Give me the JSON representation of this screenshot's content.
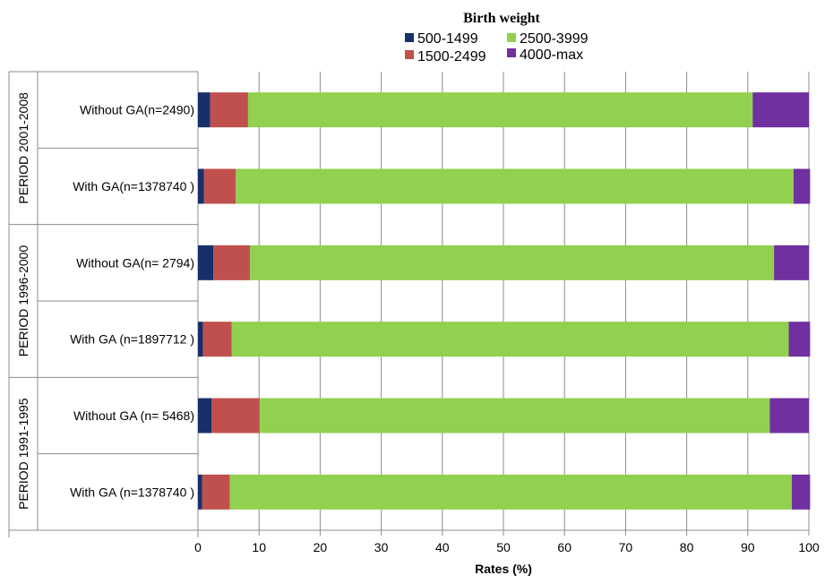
{
  "chart_data": {
    "type": "bar",
    "orientation": "horizontal",
    "stacked": true,
    "legend": {
      "title": "Birth weight",
      "placement": "top-right"
    },
    "xlabel": "Rates (%)",
    "xlim": [
      0,
      100
    ],
    "xticks": [
      "0",
      "10",
      "20",
      "30",
      "40",
      "50",
      "60",
      "70",
      "80",
      "90",
      "100"
    ],
    "grid": true,
    "groups": [
      {
        "label": "PERIOD 2001-2008",
        "rows": [
          0,
          1
        ]
      },
      {
        "label": "PERIOD 1996-2000",
        "rows": [
          2,
          3
        ]
      },
      {
        "label": "PERIOD 1991-1995",
        "rows": [
          4,
          5
        ]
      }
    ],
    "categories": [
      "Without GA(n=2490)",
      "With GA(n=1378740 )",
      "Without GA(n= 2794)",
      "With GA (n=1897712 )",
      "Without GA (n= 5468)",
      "With GA (n=1378740 )"
    ],
    "series": [
      {
        "name": "500-1499",
        "color": "#17306b",
        "values": [
          2.0,
          1.0,
          2.5,
          0.8,
          2.2,
          0.7
        ]
      },
      {
        "name": "1500-2499",
        "color": "#c0504d",
        "values": [
          6.2,
          5.2,
          6.0,
          4.7,
          7.9,
          4.5
        ]
      },
      {
        "name": "2500-3999",
        "color": "#92d050",
        "values": [
          82.6,
          91.3,
          85.8,
          91.2,
          83.5,
          92.0
        ]
      },
      {
        "name": "4000-max",
        "color": "#7030a0",
        "values": [
          9.2,
          2.7,
          5.7,
          3.5,
          6.4,
          3.0
        ]
      }
    ]
  }
}
